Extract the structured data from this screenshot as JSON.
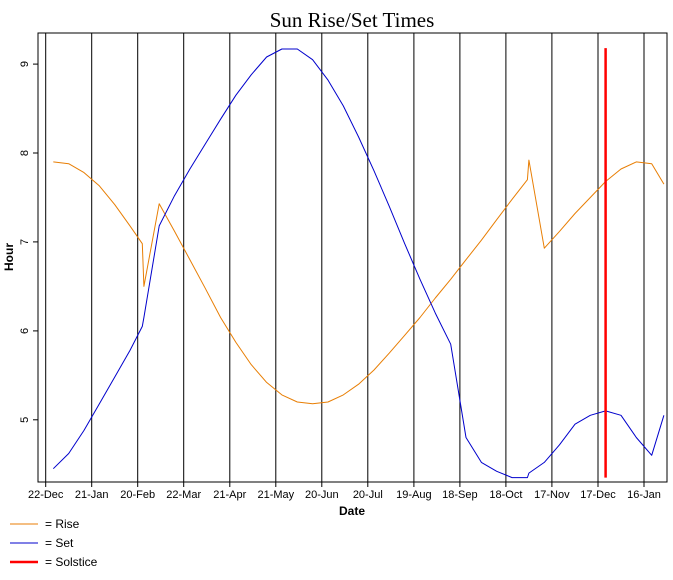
{
  "chart_data": {
    "type": "line",
    "title": "Sun Rise/Set Times",
    "xlabel": "Date",
    "ylabel": "Hour",
    "x_tick_labels": [
      "22-Dec",
      "21-Jan",
      "20-Feb",
      "22-Mar",
      "21-Apr",
      "21-May",
      "20-Jun",
      "20-Jul",
      "19-Aug",
      "18-Sep",
      "18-Oct",
      "17-Nov",
      "17-Dec",
      "16-Jan"
    ],
    "y_ticks": [
      5,
      6,
      7,
      8,
      9
    ],
    "y_tick_labels": [
      "5",
      "6",
      "7",
      "8",
      "9"
    ],
    "x_tick_days": [
      0,
      30,
      60,
      90,
      120,
      150,
      180,
      210,
      240,
      270,
      300,
      330,
      360,
      390
    ],
    "xlim": [
      -5,
      405
    ],
    "ylim": [
      4.3,
      9.35
    ],
    "grid": "vertical lines at date ticks",
    "legend_position": "bottom-left",
    "series": [
      {
        "name": "Rise",
        "color": "#E87E04",
        "x": [
          5,
          15,
          25,
          35,
          45,
          55,
          63,
          64,
          74,
          84,
          94,
          104,
          114,
          124,
          134,
          144,
          154,
          164,
          174,
          184,
          194,
          204,
          214,
          224,
          234,
          244,
          254,
          264,
          274,
          284,
          294,
          304,
          314,
          315,
          325,
          335,
          345,
          355,
          365,
          375,
          385,
          395,
          403
        ],
        "y": [
          7.9,
          7.88,
          7.78,
          7.63,
          7.42,
          7.18,
          6.98,
          6.5,
          7.43,
          7.12,
          6.8,
          6.48,
          6.15,
          5.87,
          5.62,
          5.42,
          5.28,
          5.2,
          5.18,
          5.2,
          5.28,
          5.4,
          5.56,
          5.75,
          5.95,
          6.15,
          6.37,
          6.58,
          6.8,
          7.02,
          7.25,
          7.48,
          7.7,
          7.92,
          6.93,
          7.12,
          7.32,
          7.5,
          7.68,
          7.82,
          7.9,
          7.88,
          7.65
        ]
      },
      {
        "name": "Set",
        "color": "#0000CC",
        "x": [
          5,
          15,
          25,
          35,
          45,
          55,
          63,
          64,
          74,
          84,
          94,
          104,
          114,
          124,
          134,
          144,
          154,
          164,
          174,
          184,
          194,
          204,
          214,
          224,
          234,
          244,
          254,
          264,
          274,
          284,
          294,
          304,
          314,
          315,
          325,
          335,
          345,
          355,
          365,
          375,
          385,
          395,
          403
        ],
        "y": [
          4.45,
          4.62,
          4.88,
          5.18,
          5.48,
          5.78,
          6.05,
          6.15,
          7.18,
          7.52,
          7.82,
          8.1,
          8.38,
          8.65,
          8.88,
          9.08,
          9.17,
          9.17,
          9.05,
          8.82,
          8.53,
          8.18,
          7.8,
          7.4,
          6.98,
          6.58,
          6.2,
          5.85,
          4.8,
          4.52,
          4.42,
          4.35,
          4.35,
          4.4,
          4.52,
          4.72,
          4.95,
          5.05,
          5.1,
          5.05,
          4.8,
          4.6,
          5.05
        ]
      },
      {
        "name": "Solstice",
        "color": "#FF0000",
        "x": [
          365,
          365
        ],
        "y": [
          4.35,
          9.18
        ]
      }
    ]
  }
}
